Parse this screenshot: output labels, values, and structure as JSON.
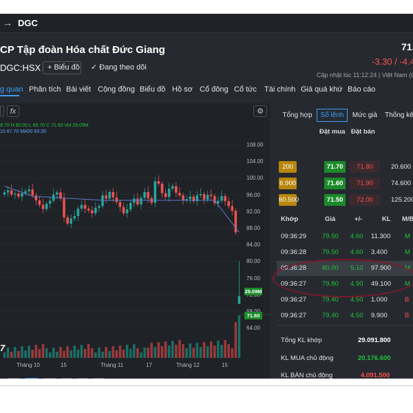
{
  "header": {
    "back_icon": "arrow-right-icon",
    "symbol": "DGC",
    "company_name": "CP Tập đoàn Hóa chất Đức Giang",
    "ticker": "DGC:HSX",
    "chart_button": "Biểu đồ",
    "follow_button": "Đang theo dõi",
    "price": "71.",
    "change": "-3.30 / -4.4",
    "updated": "Cập nhật lúc  11:12:24 | Việt Nam (GM"
  },
  "nav_tabs": [
    "g quan",
    "Phân tích",
    "Bài viết",
    "Cộng đồng",
    "Biểu đồ",
    "Hồ sơ",
    "Cổ đông",
    "Cổ tức",
    "Tài chính",
    "Giá quá khứ",
    "Báo cáo"
  ],
  "chart": {
    "legend_line1": "9.70  H 80.00  L 69.70  C 71.60  Vol 29.09M",
    "legend_line2": "10  87.70  MA50  93.35",
    "fx_label": "fx",
    "volume_tag": "29.09M",
    "price_tag": "71.60",
    "logo_text": "7",
    "price_axis": [
      "108.00",
      "104.00",
      "100.00",
      "96.00",
      "92.00",
      "88.00",
      "84.00",
      "80.00",
      "76.00",
      "72.00",
      "68.00",
      "64.00"
    ],
    "x_labels": [
      "Tháng 10",
      "15",
      "Tháng 11",
      "17",
      "Tháng 12",
      "15"
    ],
    "ranges": [
      "1m",
      "3m",
      "6m",
      "1y",
      "3y",
      "5y"
    ],
    "active_range": "3m"
  },
  "chart_data": {
    "type": "candlestick",
    "x": [
      "Tháng 10",
      "15",
      "Tháng 11",
      "17",
      "Tháng 12",
      "15"
    ],
    "ylim": [
      64,
      108
    ],
    "last": {
      "open": 69.7,
      "high": 80.0,
      "low": 69.7,
      "close": 71.6,
      "volume": "29.09M"
    },
    "ma50": 93.35,
    "ma10": 87.7
  },
  "side_tabs": [
    "Tổng hợp",
    "Sổ lệnh",
    "Mức giá",
    "Thống kê"
  ],
  "order_book": {
    "headers": {
      "bid": "Đặt mua",
      "ask": "Đặt bán"
    },
    "rows": [
      {
        "bid_vol": "200",
        "bid": "71.70",
        "ask": "71.80",
        "ask_vol": "20.600"
      },
      {
        "bid_vol": "6.900",
        "bid": "71.60",
        "ask": "71.90",
        "ask_vol": "74.600"
      },
      {
        "bid_vol": "60.500",
        "bid": "71.50",
        "ask": "72.00",
        "ask_vol": "125.200"
      }
    ]
  },
  "trades": {
    "headers": [
      "Khớp",
      "Giá",
      "+/-",
      "KL",
      "M/B"
    ],
    "rows": [
      {
        "time": "09:36:29",
        "price": "79.50",
        "change": "4.60",
        "vol": "11.300",
        "side": "M",
        "up": true
      },
      {
        "time": "09:36:28",
        "price": "79.50",
        "change": "4.60",
        "vol": "3.400",
        "side": "M",
        "up": true
      },
      {
        "time": "09:36:28",
        "price": "80.00",
        "change": "5.10",
        "vol": "97.900",
        "side": "M",
        "up": true
      },
      {
        "time": "09:36:27",
        "price": "79.80",
        "change": "4.90",
        "vol": "49.100",
        "side": "M",
        "up": true
      },
      {
        "time": "09:36:27",
        "price": "79.40",
        "change": "4.50",
        "vol": "1.000",
        "side": "B",
        "up": true
      },
      {
        "time": "09:36:27",
        "price": "79.40",
        "change": "4.50",
        "vol": "9.900",
        "side": "B",
        "up": true
      }
    ]
  },
  "summary": {
    "total_label": "Tổng KL khớp",
    "total_value": "29.091.800",
    "buy_label": "KL MUA chủ động",
    "buy_value": "20.176.600",
    "sell_label": "KL BÁN chủ động",
    "sell_value": "4.091.500"
  },
  "colors": {
    "up": "#1fc43a",
    "down": "#ff4d4d",
    "accent": "#3fa0ff",
    "bg": "#262a30",
    "chart_bg": "#1f2227"
  }
}
